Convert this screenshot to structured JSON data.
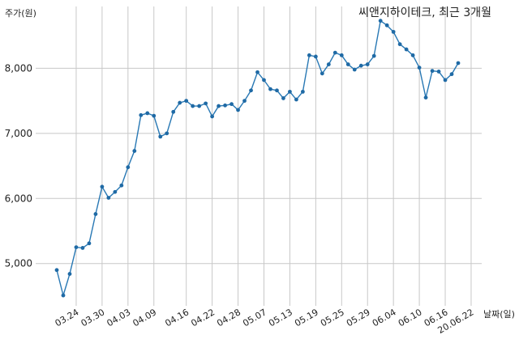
{
  "chart_data": {
    "type": "line",
    "title": "씨앤지하이테크, 최근 3개월",
    "ylabel": "주가(원)",
    "xlabel": "날짜(일)",
    "ylim": [
      4350,
      8950
    ],
    "yticks": [
      5000,
      6000,
      7000,
      8000
    ],
    "ytick_labels": [
      "5,000",
      "6,000",
      "7,000",
      "8,000"
    ],
    "grid": true,
    "colors": {
      "line": "#2878b4",
      "marker": "#1f6aa5",
      "grid": "#c8c8c8"
    },
    "x_tick_labels": [
      "03.24",
      "03.30",
      "04.03",
      "04.09",
      "04.16",
      "04.22",
      "04.28",
      "05.07",
      "05.13",
      "05.19",
      "05.25",
      "05.29",
      "06.04",
      "06.10",
      "06.16",
      "20.06.22"
    ],
    "x_tick_index": [
      3,
      7,
      11,
      15,
      20,
      24,
      28,
      32,
      36,
      40,
      44,
      48,
      52,
      56,
      60,
      64
    ],
    "series": [
      {
        "values": [
          4900,
          4510,
          4840,
          5250,
          5240,
          5310,
          5760,
          6180,
          6010,
          6100,
          6200,
          6480,
          6730,
          7280,
          7310,
          7270,
          6950,
          7000,
          7330,
          7470,
          7500,
          7420,
          7420,
          7460,
          7260,
          7420,
          7430,
          7450,
          7360,
          7500,
          7660,
          7940,
          7820,
          7680,
          7660,
          7540,
          7640,
          7520,
          7640,
          8200,
          8180,
          7920,
          8060,
          8240,
          8200,
          8060,
          7980,
          8040,
          8060,
          8190,
          8730,
          8660,
          8560,
          8370,
          8290,
          8200,
          8010,
          7550,
          7960,
          7950,
          7820,
          7910,
          8080
        ]
      }
    ]
  }
}
